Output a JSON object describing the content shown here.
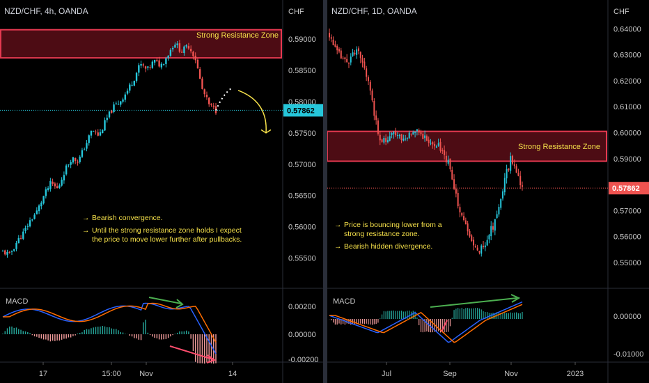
{
  "colors": {
    "up": "#26c6da",
    "down": "#ef5350",
    "zone_border": "#e53950",
    "zone_fill": "#5a0e18",
    "note_text": "#f5e04a",
    "arrow_green": "#4caf50",
    "macd_line": "#2962ff",
    "signal_line": "#ff6d00",
    "curve_arrow": "#f5e04a"
  },
  "left": {
    "symbol": "NZD/CHF, 4h, OANDA",
    "currency": "CHF",
    "price_ticks": [
      "0.59000",
      "0.58500",
      "0.58000",
      "0.57500",
      "0.57000",
      "0.56500",
      "0.56000",
      "0.55500"
    ],
    "last_price": "0.57862",
    "zone_label": "Strong Resistance Zone",
    "notes": [
      {
        "arrow": "→",
        "lines": [
          "Bearish convergence."
        ]
      },
      {
        "arrow": "→",
        "lines": [
          "Until the strong resistance zone holds I expect",
          "the price to move lower further after pullbacks."
        ]
      }
    ],
    "macd_label": "MACD",
    "macd_ticks": [
      "0.00200",
      "0.00000",
      "-0.00200"
    ],
    "time_ticks": [
      "17",
      "15:00",
      "Nov",
      "14"
    ]
  },
  "right": {
    "symbol": "NZD/CHF, 1D, OANDA",
    "currency": "CHF",
    "price_ticks": [
      "0.64000",
      "0.63000",
      "0.62000",
      "0.61000",
      "0.60000",
      "0.59000",
      "0.57000",
      "0.56000",
      "0.55000"
    ],
    "last_price": "0.57862",
    "zone_label": "Strong Resistance Zone",
    "notes": [
      {
        "arrow": "→",
        "lines": [
          "Price is bouncing lower from a",
          "strong resistance zone."
        ]
      },
      {
        "arrow": "→",
        "lines": [
          "Bearish hidden divergence."
        ]
      }
    ],
    "macd_label": "MACD",
    "macd_ticks": [
      "0.00000",
      "-0.01000"
    ],
    "time_ticks": [
      "Jul",
      "Sep",
      "Nov",
      "2023"
    ]
  },
  "chart_data": [
    {
      "type": "candlestick",
      "title": "NZD/CHF, 4h, OANDA",
      "ylabel": "CHF",
      "ylim": [
        0.5535,
        0.5918
      ],
      "resistance_zone": [
        0.587,
        0.5915
      ],
      "last_price": 0.57862,
      "x_ticks": [
        "17",
        "15:00",
        "Nov",
        "14"
      ],
      "close_path_approx": [
        0.556,
        0.5555,
        0.5575,
        0.559,
        0.561,
        0.5625,
        0.565,
        0.567,
        0.566,
        0.569,
        0.571,
        0.5705,
        0.573,
        0.5755,
        0.5745,
        0.577,
        0.579,
        0.58,
        0.5815,
        0.5835,
        0.586,
        0.585,
        0.5865,
        0.5858,
        0.5875,
        0.5895,
        0.588,
        0.589,
        0.587,
        0.582,
        0.5795,
        0.5786
      ],
      "projection_peak": 0.5822,
      "projection_target": 0.575,
      "annotations": [
        "Bearish convergence.",
        "Until the strong resistance zone holds I expect the price to move lower further after pullbacks."
      ]
    },
    {
      "type": "candlestick",
      "title": "NZD/CHF, 1D, OANDA",
      "ylabel": "CHF",
      "ylim": [
        0.547,
        0.642
      ],
      "resistance_zone": [
        0.589,
        0.6005
      ],
      "last_price": 0.57862,
      "x_ticks": [
        "Jul",
        "Sep",
        "Nov",
        "2023"
      ],
      "close_path_approx": [
        0.638,
        0.632,
        0.629,
        0.627,
        0.63,
        0.631,
        0.626,
        0.62,
        0.605,
        0.598,
        0.596,
        0.599,
        0.6,
        0.597,
        0.599,
        0.602,
        0.6,
        0.598,
        0.595,
        0.596,
        0.592,
        0.588,
        0.578,
        0.57,
        0.564,
        0.558,
        0.554,
        0.556,
        0.56,
        0.565,
        0.572,
        0.583,
        0.59,
        0.586,
        0.5786
      ],
      "annotations": [
        "Price is bouncing lower from a strong resistance zone.",
        "Bearish hidden divergence."
      ]
    }
  ]
}
